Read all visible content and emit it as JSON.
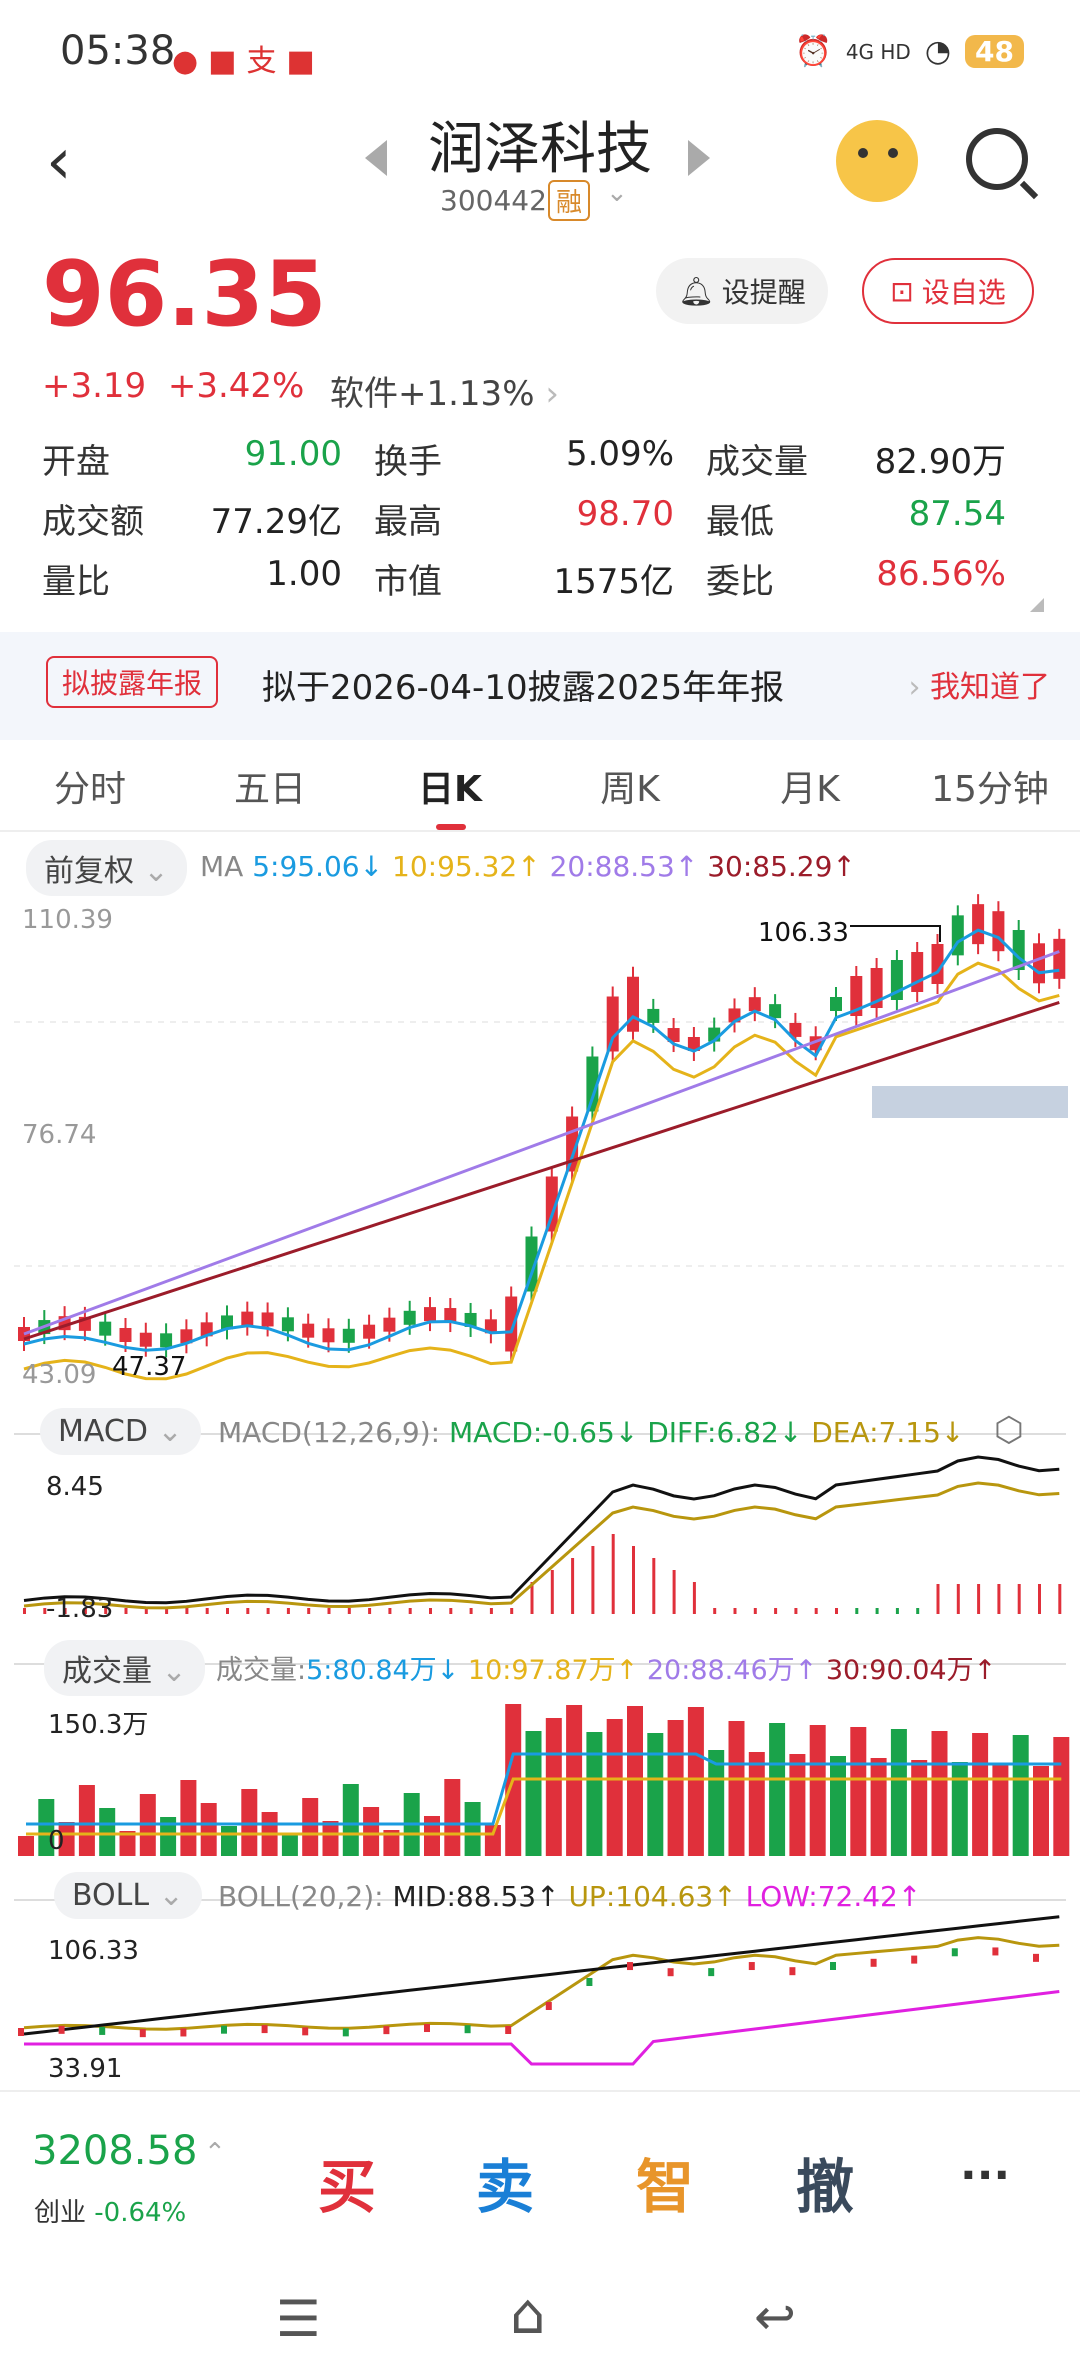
{
  "status": {
    "time": "05:38",
    "network": "4G HD",
    "battery": "48"
  },
  "header": {
    "title": "润泽科技",
    "code": "300442",
    "tag": "融"
  },
  "quote": {
    "price": "96.35",
    "change": "+3.19",
    "change_pct": "+3.42%",
    "sector": "软件+1.13%"
  },
  "buttons": {
    "alert": "设提醒",
    "watch": "设自选"
  },
  "stats": [
    [
      {
        "label": "开盘",
        "value": "91.00",
        "color": "green"
      },
      {
        "label": "换手",
        "value": "5.09%",
        "color": "dark"
      },
      {
        "label": "成交量",
        "value": "82.90万",
        "color": "dark"
      }
    ],
    [
      {
        "label": "成交额",
        "value": "77.29亿",
        "color": "dark"
      },
      {
        "label": "最高",
        "value": "98.70",
        "color": "red"
      },
      {
        "label": "最低",
        "value": "87.54",
        "color": "green"
      }
    ],
    [
      {
        "label": "量比",
        "value": "1.00",
        "color": "dark"
      },
      {
        "label": "市值",
        "value": "1575亿",
        "color": "dark"
      },
      {
        "label": "委比",
        "value": "86.56%",
        "color": "red"
      }
    ]
  ],
  "banner": {
    "tag": "拟披露年报",
    "text": "拟于2026-04-10披露2025年年报",
    "action": "我知道了"
  },
  "tabs": [
    "分时",
    "五日",
    "日K",
    "周K",
    "月K",
    "15分钟"
  ],
  "active_tab": 2,
  "ma": {
    "adj": "前复权",
    "label": "MA",
    "ma5": "5:95.06↓",
    "ma10": "10:95.32↑",
    "ma20": "20:88.53↑",
    "ma30": "30:85.29↑"
  },
  "price_axis": {
    "top": "110.39",
    "mid": "76.74",
    "bottom": "43.09",
    "high_mark": "106.33",
    "low_mark": "47.37"
  },
  "macd": {
    "label": "MACD",
    "params": "MACD(12,26,9):",
    "macd": "MACD:-0.65↓",
    "diff": "DIFF:6.82↓",
    "dea": "DEA:7.15↓",
    "top": "8.45",
    "bottom": "-1.83"
  },
  "volume": {
    "label": "成交量",
    "prefix": "成交量:",
    "v5": "5:80.84万↓",
    "v10": "10:97.87万↑",
    "v20": "20:88.46万↑",
    "v30": "30:90.04万↑",
    "top": "150.3万",
    "bottom": "0"
  },
  "boll": {
    "label": "BOLL",
    "params": "BOLL(20,2):",
    "mid": "MID:88.53↑",
    "up": "UP:104.63↑",
    "low": "LOW:72.42↑",
    "top": "106.33",
    "bottom": "33.91"
  },
  "index": {
    "value": "3208.58",
    "name": "创业",
    "pct": "-0.64%"
  },
  "actions": {
    "buy": "买",
    "sell": "卖",
    "smart": "智",
    "cancel": "撤",
    "more": "···"
  },
  "colors": {
    "up": "#e0303b",
    "down": "#1aa34a",
    "ma5": "#1a9be0",
    "ma10": "#e5b31a",
    "ma20": "#a07be8",
    "ma30": "#9b1c2a"
  }
}
